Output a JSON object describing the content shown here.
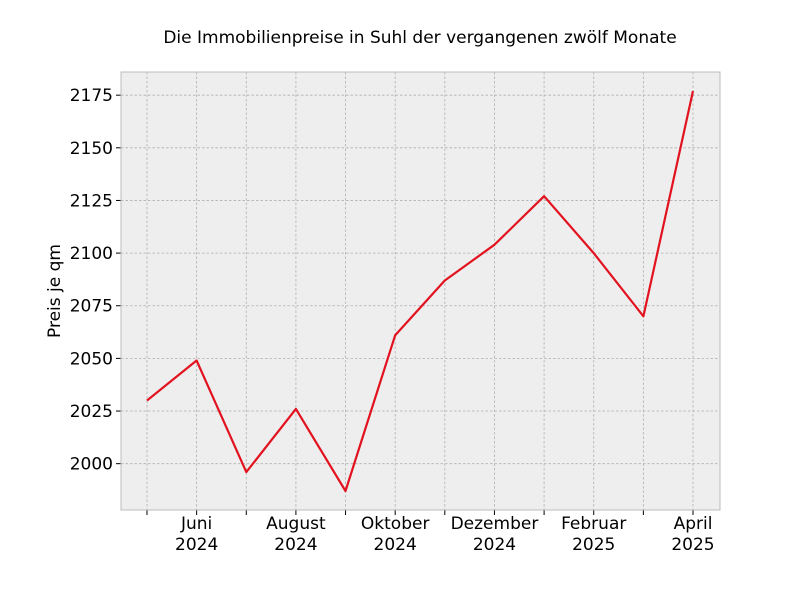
{
  "chart_data": {
    "type": "line",
    "title": "Die Immobilienpreise in Suhl der vergangenen zwölf Monate",
    "xlabel": "",
    "ylabel": "Preis je qm",
    "x": [
      "2024-05",
      "2024-06",
      "2024-07",
      "2024-08",
      "2024-09",
      "2024-10",
      "2024-11",
      "2024-12",
      "2025-01",
      "2025-02",
      "2025-03",
      "2025-04"
    ],
    "series": [
      {
        "values": [
          2030,
          2049,
          1996,
          2026,
          1987,
          2061,
          2087,
          2104,
          2127,
          2100,
          2070,
          2177
        ]
      }
    ],
    "x_tick_labels": [
      {
        "x": "2024-06",
        "line1": "Juni",
        "line2": "2024"
      },
      {
        "x": "2024-08",
        "line1": "August",
        "line2": "2024"
      },
      {
        "x": "2024-10",
        "line1": "Oktober",
        "line2": "2024"
      },
      {
        "x": "2024-12",
        "line1": "Dezember",
        "line2": "2024"
      },
      {
        "x": "2025-02",
        "line1": "Februar",
        "line2": "2025"
      },
      {
        "x": "2025-04",
        "line1": "April",
        "line2": "2025"
      }
    ],
    "yticks": [
      2000,
      2025,
      2050,
      2075,
      2100,
      2125,
      2150,
      2175
    ],
    "ylim": [
      1978,
      2186
    ],
    "grid": true,
    "colors": {
      "line": "#e2121f",
      "plot_bg": "#eeeeee",
      "grid": "#b0b0b0",
      "frame": "#bcbcbc"
    }
  }
}
